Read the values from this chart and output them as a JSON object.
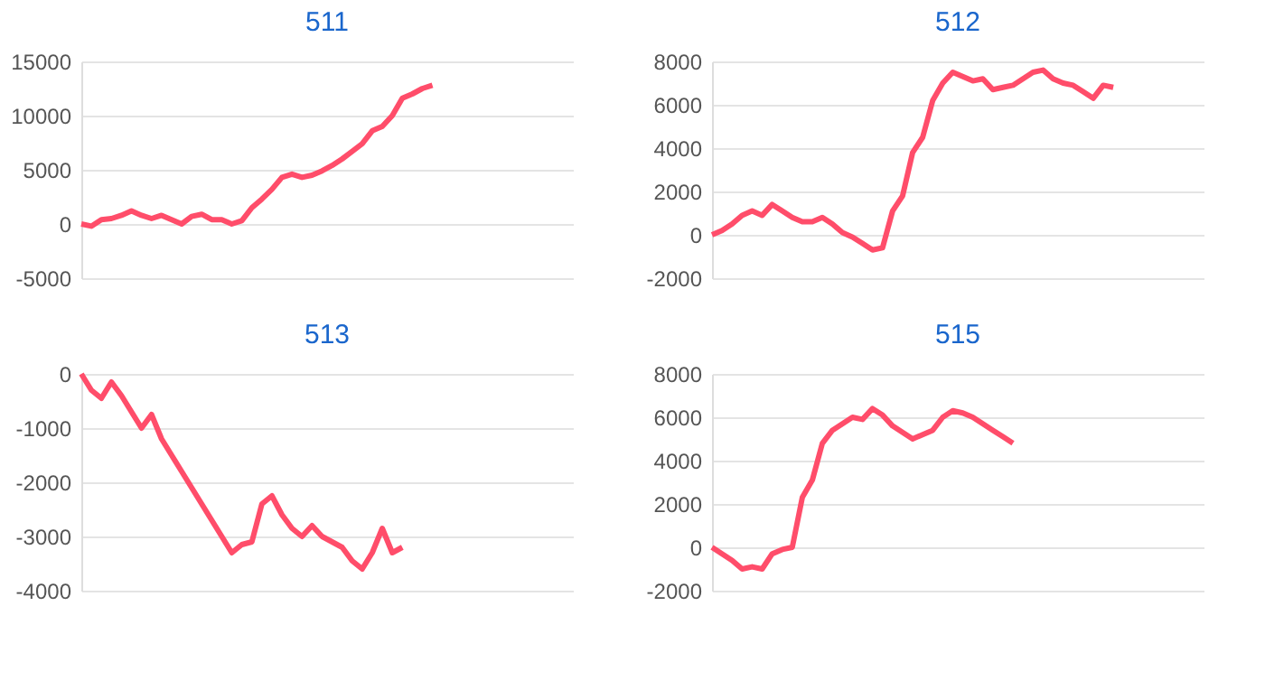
{
  "chart_data": [
    {
      "type": "line",
      "title": "511",
      "categories": [
        null,
        null,
        null,
        null,
        null,
        null,
        null,
        null,
        null,
        null,
        null,
        null,
        null,
        null,
        null,
        null,
        null,
        null,
        null,
        null,
        null,
        null,
        null,
        null,
        null,
        null,
        null,
        null,
        null,
        null,
        null,
        null,
        null,
        null,
        null,
        null,
        null,
        null,
        null,
        null,
        null,
        null,
        null,
        null,
        null,
        null,
        null,
        null,
        null,
        null
      ],
      "tick_labels": "y",
      "grid": "y",
      "ylim": [
        -5000,
        15000
      ],
      "yticks": [
        -5000,
        0,
        5000,
        10000,
        15000
      ],
      "series": [
        {
          "color": "#ff4d6a",
          "values": [
            0,
            -200,
            400,
            500,
            800,
            1200,
            800,
            500,
            800,
            400,
            0,
            700,
            900,
            400,
            400,
            0,
            300,
            1500,
            2300,
            3200,
            4300,
            4600,
            4300,
            4500,
            4900,
            5400,
            6000,
            6700,
            7400,
            8600,
            9000,
            10000,
            11600,
            12000,
            12500,
            12800,
            null,
            null,
            null,
            null,
            null,
            null,
            null,
            null,
            null,
            null,
            null,
            null,
            null,
            null
          ]
        }
      ]
    },
    {
      "type": "line",
      "title": "512",
      "categories": [
        null,
        null,
        null,
        null,
        null,
        null,
        null,
        null,
        null,
        null,
        null,
        null,
        null,
        null,
        null,
        null,
        null,
        null,
        null,
        null,
        null,
        null,
        null,
        null,
        null,
        null,
        null,
        null,
        null,
        null,
        null,
        null,
        null,
        null,
        null,
        null,
        null,
        null,
        null,
        null,
        null,
        null,
        null,
        null,
        null,
        null,
        null,
        null,
        null,
        null
      ],
      "tick_labels": "y",
      "grid": "y",
      "ylim": [
        -2000,
        8000
      ],
      "yticks": [
        -2000,
        0,
        2000,
        4000,
        6000,
        8000
      ],
      "series": [
        {
          "color": "#ff4d6a",
          "values": [
            0,
            200,
            500,
            900,
            1100,
            900,
            1400,
            1100,
            800,
            600,
            600,
            800,
            500,
            100,
            -100,
            -400,
            -700,
            -600,
            1100,
            1800,
            3800,
            4500,
            6200,
            7000,
            7500,
            7300,
            7100,
            7200,
            6700,
            6800,
            6900,
            7200,
            7500,
            7600,
            7200,
            7000,
            6900,
            6600,
            6300,
            6900,
            6800,
            null,
            null,
            null,
            null,
            null,
            null,
            null,
            null,
            null
          ]
        }
      ]
    },
    {
      "type": "line",
      "title": "513",
      "categories": [
        null,
        null,
        null,
        null,
        null,
        null,
        null,
        null,
        null,
        null,
        null,
        null,
        null,
        null,
        null,
        null,
        null,
        null,
        null,
        null,
        null,
        null,
        null,
        null,
        null,
        null,
        null,
        null,
        null,
        null,
        null,
        null,
        null,
        null,
        null,
        null,
        null,
        null,
        null,
        null,
        null,
        null,
        null,
        null,
        null,
        null,
        null,
        null,
        null,
        null
      ],
      "tick_labels": "y",
      "grid": "y",
      "ylim": [
        -4000,
        0
      ],
      "yticks": [
        -4000,
        -3000,
        -2000,
        -1000,
        0
      ],
      "series": [
        {
          "color": "#ff4d6a",
          "values": [
            0,
            -300,
            -450,
            -150,
            -400,
            -700,
            -1000,
            -750,
            -1200,
            -1500,
            -1800,
            -2100,
            -2400,
            -2700,
            -3000,
            -3300,
            -3150,
            -3100,
            -2400,
            -2250,
            -2600,
            -2850,
            -3000,
            -2800,
            -3000,
            -3100,
            -3200,
            -3450,
            -3600,
            -3300,
            -2850,
            -3300,
            -3200,
            null,
            null,
            null,
            null,
            null,
            null,
            null,
            null,
            null,
            null,
            null,
            null,
            null,
            null,
            null,
            null,
            null
          ]
        }
      ]
    },
    {
      "type": "line",
      "title": "515",
      "categories": [
        null,
        null,
        null,
        null,
        null,
        null,
        null,
        null,
        null,
        null,
        null,
        null,
        null,
        null,
        null,
        null,
        null,
        null,
        null,
        null,
        null,
        null,
        null,
        null,
        null,
        null,
        null,
        null,
        null,
        null,
        null,
        null,
        null,
        null,
        null,
        null,
        null,
        null,
        null,
        null,
        null,
        null,
        null,
        null,
        null,
        null,
        null,
        null,
        null,
        null
      ],
      "tick_labels": "y",
      "grid": "y",
      "ylim": [
        -2000,
        8000
      ],
      "yticks": [
        -2000,
        0,
        2000,
        4000,
        6000,
        8000
      ],
      "series": [
        {
          "color": "#ff4d6a",
          "values": [
            0,
            -300,
            -600,
            -1000,
            -900,
            -1000,
            -300,
            -100,
            0,
            2300,
            3100,
            4800,
            5400,
            5700,
            6000,
            5900,
            6400,
            6100,
            5600,
            5300,
            5000,
            5200,
            5400,
            6000,
            6300,
            6200,
            6000,
            5700,
            5400,
            5100,
            4800,
            null,
            null,
            null,
            null,
            null,
            null,
            null,
            null,
            null,
            null,
            null,
            null,
            null,
            null,
            null,
            null,
            null,
            null,
            null
          ]
        }
      ]
    }
  ]
}
